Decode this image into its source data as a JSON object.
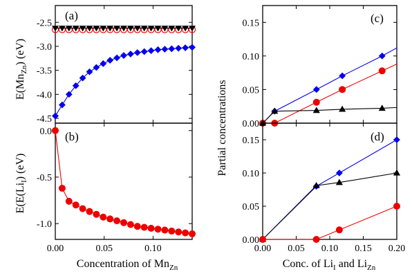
{
  "colors": {
    "blue": "#0000ee",
    "red": "#ee0000",
    "black": "#000000"
  },
  "chart_data": [
    {
      "id": "a",
      "type": "line",
      "panel_label": "(a)",
      "ylabel_main": "E(Mn",
      "ylabel_sub": "Zn",
      "ylabel_tail": ") (eV)",
      "xlim": [
        0,
        0.14
      ],
      "ylim": [
        -4.6,
        -2.15
      ],
      "yticks": [
        -2.5,
        -3.0,
        -3.5,
        -4.0,
        -4.5
      ],
      "ytick_labels": [
        "-2.5",
        "-3.0",
        "-3.5",
        "-4.0",
        "-4.5"
      ],
      "xticks": [
        0,
        0.05,
        0.1
      ],
      "series": [
        {
          "marker": "diamond",
          "color": "blue",
          "line": true,
          "filled": true,
          "x": [
            0,
            0.007,
            0.014,
            0.021,
            0.028,
            0.035,
            0.042,
            0.049,
            0.056,
            0.063,
            0.07,
            0.077,
            0.084,
            0.091,
            0.098,
            0.105,
            0.112,
            0.119,
            0.126,
            0.133,
            0.14
          ],
          "y": [
            -4.45,
            -4.22,
            -4.0,
            -3.82,
            -3.66,
            -3.53,
            -3.44,
            -3.36,
            -3.29,
            -3.24,
            -3.19,
            -3.16,
            -3.13,
            -3.11,
            -3.09,
            -3.07,
            -3.06,
            -3.05,
            -3.04,
            -3.03,
            -3.02
          ]
        },
        {
          "marker": "circle-open",
          "color": "red",
          "line": false,
          "filled": false,
          "x": [
            0,
            0.007,
            0.014,
            0.021,
            0.028,
            0.035,
            0.042,
            0.049,
            0.056,
            0.063,
            0.07,
            0.077,
            0.084,
            0.091,
            0.098,
            0.105,
            0.112,
            0.119,
            0.126,
            0.133,
            0.14
          ],
          "y": [
            -2.65,
            -2.65,
            -2.65,
            -2.65,
            -2.65,
            -2.65,
            -2.65,
            -2.65,
            -2.65,
            -2.65,
            -2.65,
            -2.65,
            -2.65,
            -2.65,
            -2.65,
            -2.65,
            -2.65,
            -2.65,
            -2.65,
            -2.65,
            -2.65
          ]
        },
        {
          "marker": "triangle-down",
          "color": "black",
          "line": true,
          "filled": true,
          "x": [
            0,
            0.007,
            0.014,
            0.021,
            0.028,
            0.035,
            0.042,
            0.049,
            0.056,
            0.063,
            0.07,
            0.077,
            0.084,
            0.091,
            0.098,
            0.105,
            0.112,
            0.119,
            0.126,
            0.133,
            0.14
          ],
          "y": [
            -2.62,
            -2.62,
            -2.62,
            -2.62,
            -2.62,
            -2.62,
            -2.62,
            -2.62,
            -2.62,
            -2.62,
            -2.62,
            -2.62,
            -2.62,
            -2.62,
            -2.62,
            -2.62,
            -2.62,
            -2.62,
            -2.62,
            -2.62,
            -2.62
          ]
        }
      ]
    },
    {
      "id": "b",
      "type": "line",
      "panel_label": "(b)",
      "ylabel_main": "E(E(Li",
      "ylabel_sub": "I",
      "ylabel_tail": ") (eV)",
      "xlabel_main": "Concentration of Mn",
      "xlabel_sub": "Zn",
      "xlim": [
        0,
        0.14
      ],
      "ylim": [
        -1.17,
        0.08
      ],
      "yticks": [
        0,
        -0.5,
        -1.0
      ],
      "ytick_labels": [
        "0.0",
        "-0.5",
        "-1.0"
      ],
      "xticks": [
        0,
        0.05,
        0.1
      ],
      "xtick_labels": [
        "0.00",
        "0.05",
        "0.10"
      ],
      "series": [
        {
          "marker": "circle",
          "color": "red",
          "line": true,
          "filled": true,
          "x": [
            0,
            0.007,
            0.014,
            0.021,
            0.028,
            0.035,
            0.042,
            0.049,
            0.056,
            0.063,
            0.07,
            0.077,
            0.084,
            0.091,
            0.098,
            0.105,
            0.112,
            0.119,
            0.126,
            0.133,
            0.14
          ],
          "y": [
            0.0,
            -0.62,
            -0.76,
            -0.8,
            -0.84,
            -0.87,
            -0.9,
            -0.93,
            -0.95,
            -0.97,
            -0.99,
            -1.01,
            -1.03,
            -1.04,
            -1.05,
            -1.06,
            -1.07,
            -1.08,
            -1.09,
            -1.1,
            -1.11
          ]
        }
      ]
    },
    {
      "id": "c",
      "type": "line",
      "panel_label": "(c)",
      "xlim": [
        0,
        0.2
      ],
      "ylim": [
        0,
        0.175
      ],
      "yticks": [
        0,
        0.05,
        0.1,
        0.15
      ],
      "ytick_labels": [
        "0.00",
        "0.05",
        "0.10",
        "0.15"
      ],
      "xticks": [
        0,
        0.05,
        0.1,
        0.15,
        0.2
      ],
      "series": [
        {
          "marker": "diamond",
          "color": "blue",
          "line": true,
          "filled": true,
          "x": [
            0,
            0.0178,
            0.0802,
            0.1187,
            0.1781
          ],
          "y": [
            0,
            0.0178,
            0.0501,
            0.0704,
            0.1
          ],
          "ext": [
            0.2,
            0.112
          ]
        },
        {
          "marker": "circle",
          "color": "red",
          "line": true,
          "filled": true,
          "x": [
            0,
            0.0178,
            0.0802,
            0.1187,
            0.1781
          ],
          "y": [
            0,
            0,
            0.0311,
            0.0501,
            0.0778
          ],
          "ext": [
            0.2,
            0.088
          ]
        },
        {
          "marker": "triangle",
          "color": "black",
          "line": true,
          "filled": true,
          "x": [
            0,
            0.0178,
            0.0802,
            0.1187,
            0.1781
          ],
          "y": [
            0,
            0.0178,
            0.019,
            0.0207,
            0.0222
          ],
          "ext": [
            0.2,
            0.0233
          ]
        }
      ]
    },
    {
      "id": "d",
      "type": "line",
      "panel_label": "(d)",
      "shared_ylabel": "Partial concentrations",
      "xlabel_main": "Conc. of Li",
      "xlabel_sub1": "I",
      "xlabel_mid": " and Li",
      "xlabel_sub2": "Zn",
      "xlim": [
        0,
        0.2
      ],
      "ylim": [
        0,
        0.175
      ],
      "yticks": [
        0,
        0.05,
        0.1,
        0.15
      ],
      "ytick_labels": [
        "0.00",
        "0.05",
        "0.10",
        "0.15"
      ],
      "xticks": [
        0,
        0.05,
        0.1,
        0.15,
        0.2
      ],
      "xtick_labels": [
        "0.00",
        "0.05",
        "0.10",
        "0.15",
        "0.20"
      ],
      "series": [
        {
          "marker": "diamond",
          "color": "blue",
          "line": true,
          "filled": true,
          "x": [
            0,
            0.08,
            0.1143,
            0.2
          ],
          "y": [
            0,
            0.08,
            0.1,
            0.15
          ]
        },
        {
          "marker": "triangle",
          "color": "black",
          "line": true,
          "filled": true,
          "x": [
            0,
            0.08,
            0.1143,
            0.2
          ],
          "y": [
            0,
            0.081,
            0.0857,
            0.1
          ]
        },
        {
          "marker": "circle",
          "color": "red",
          "line": true,
          "filled": true,
          "x": [
            0,
            0.08,
            0.1143,
            0.2
          ],
          "y": [
            0,
            0,
            0.0143,
            0.05
          ]
        }
      ]
    }
  ]
}
